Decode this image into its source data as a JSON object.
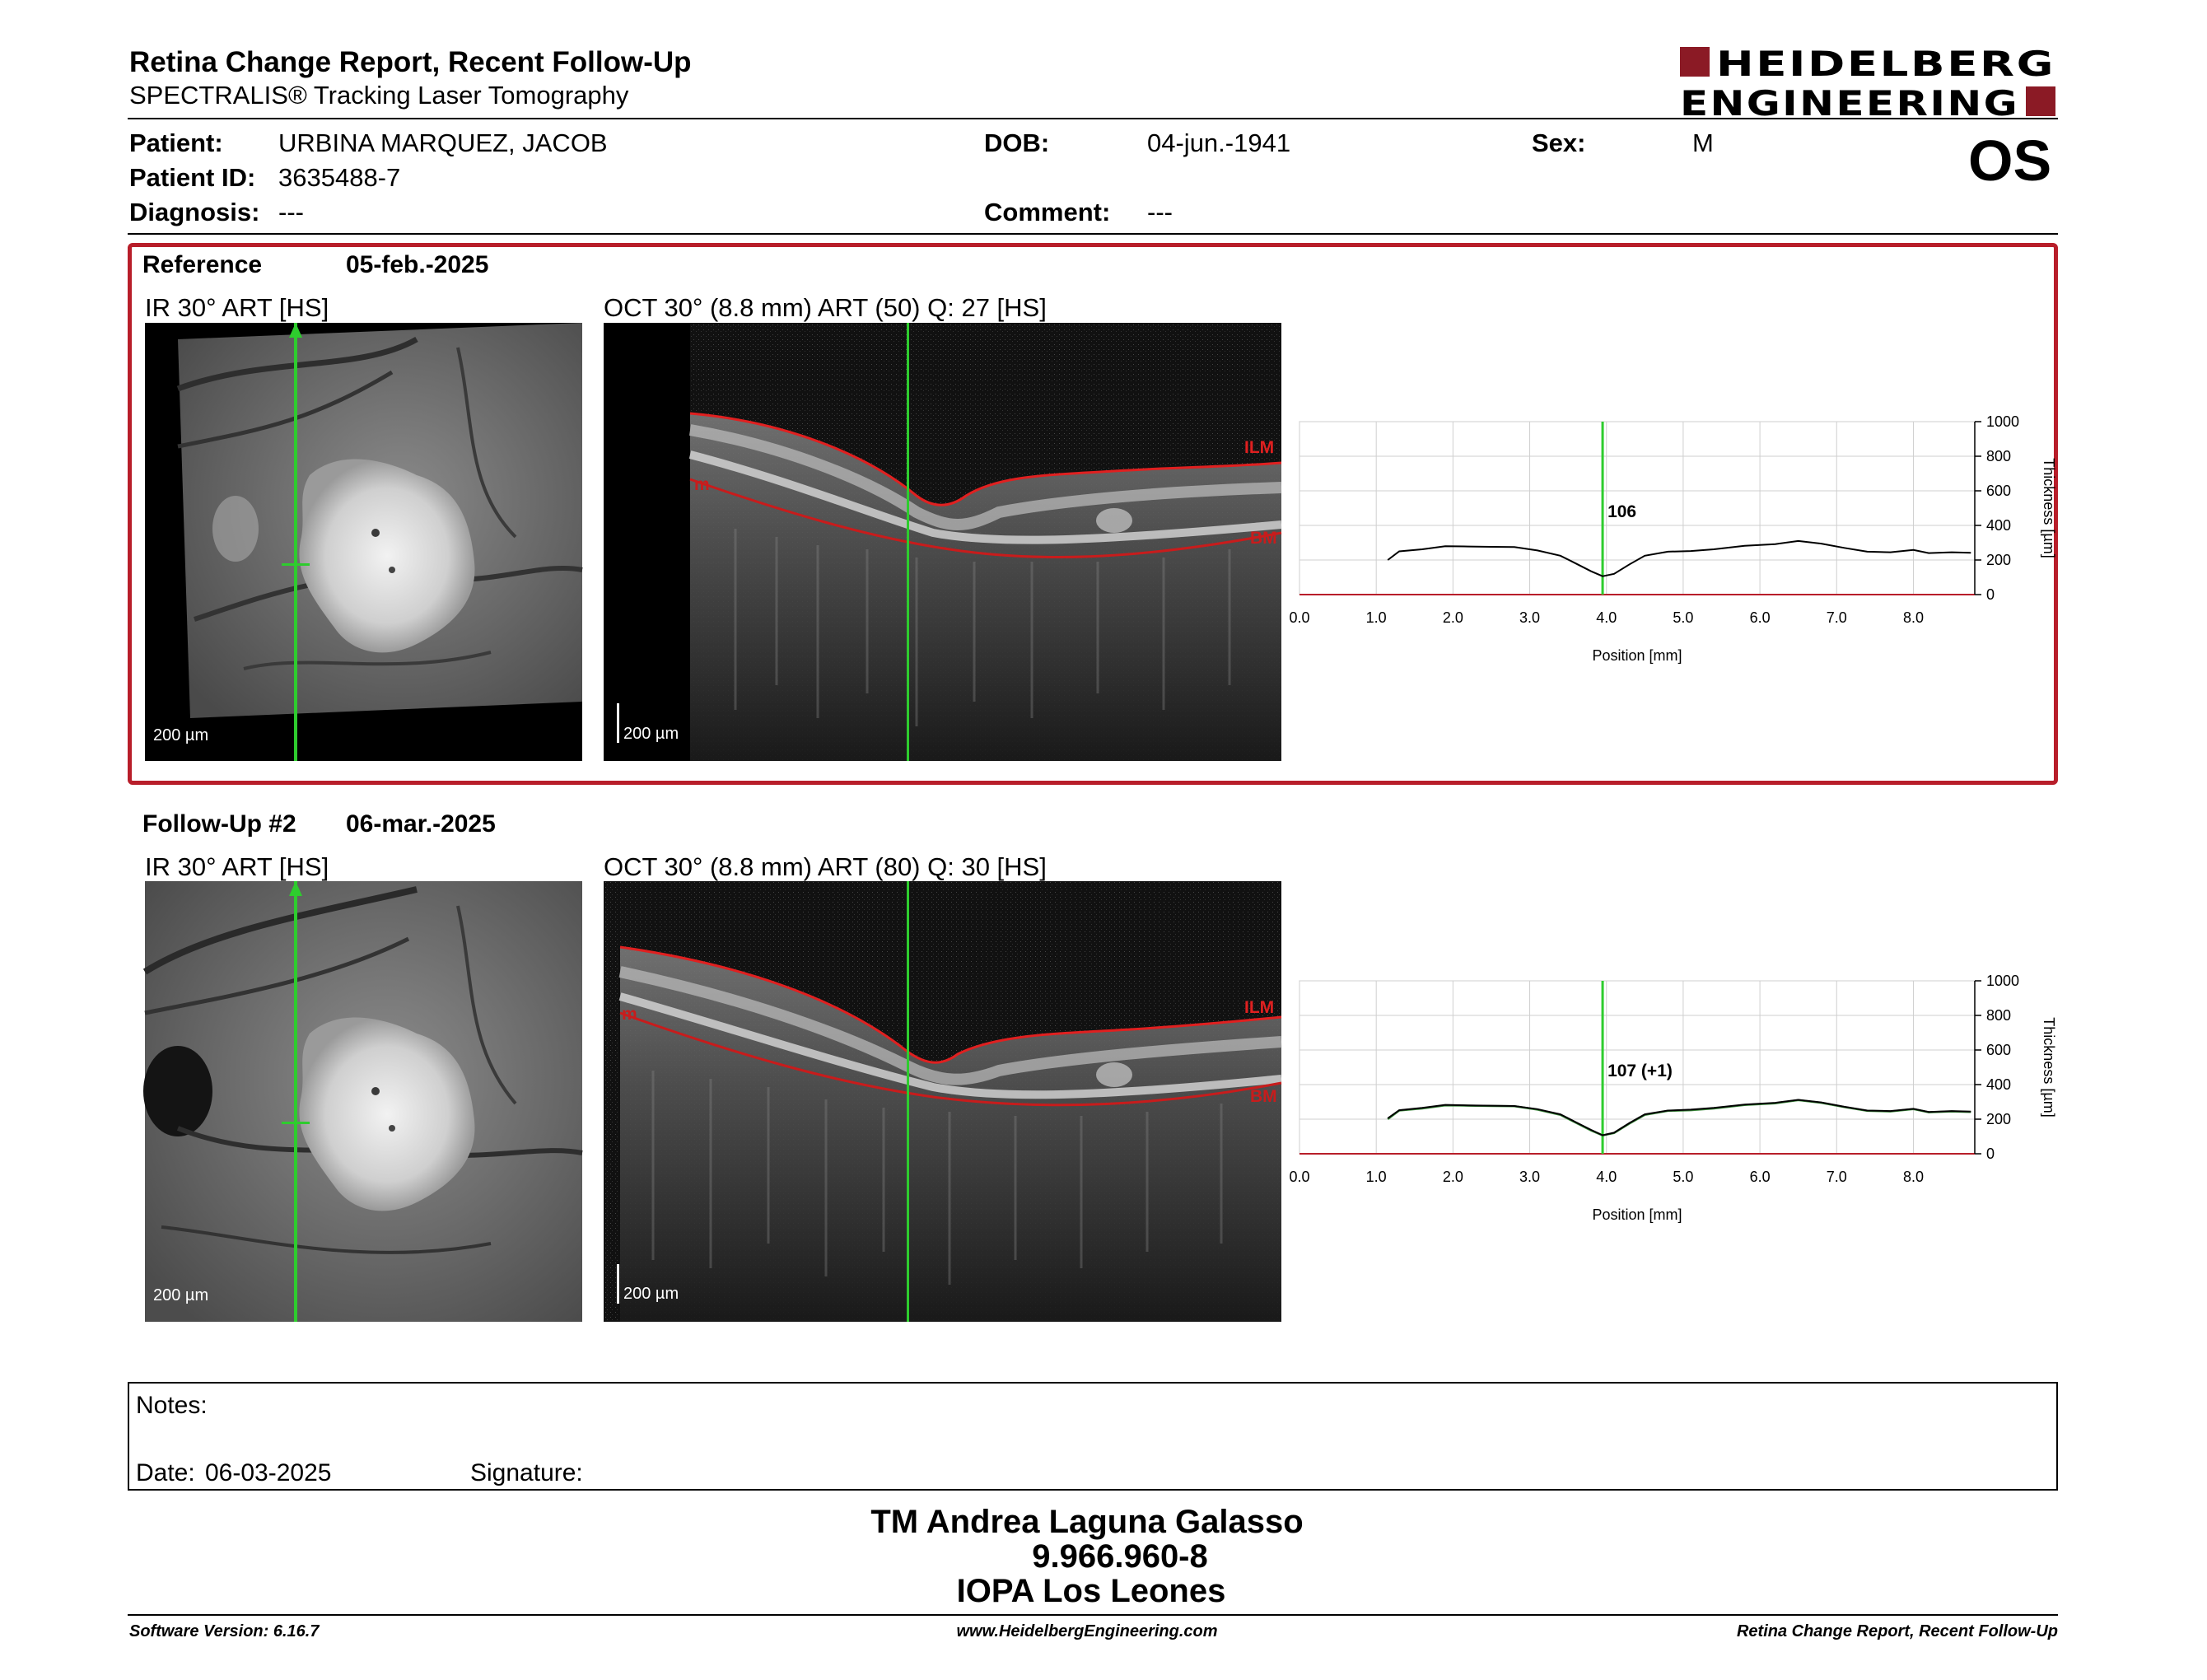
{
  "header": {
    "title": "Retina Change Report, Recent Follow-Up",
    "subtitle": "SPECTRALIS® Tracking Laser Tomography",
    "logo_line1": "HEIDELBERG",
    "logo_line2": "ENGINEERING",
    "brand_color": "#8b1a25"
  },
  "patient": {
    "patient_label": "Patient:",
    "patient_value": "URBINA MARQUEZ, JACOB",
    "id_label": "Patient ID:",
    "id_value": "3635488-7",
    "diagnosis_label": "Diagnosis:",
    "diagnosis_value": "---",
    "dob_label": "DOB:",
    "dob_value": "04-jun.-1941",
    "comment_label": "Comment:",
    "comment_value": "---",
    "sex_label": "Sex:",
    "sex_value": "M",
    "eye": "OS"
  },
  "reference": {
    "label": "Reference",
    "date": "05-feb.-2025",
    "ir_label": "IR 30° ART [HS]",
    "oct_label": "OCT 30° (8.8 mm) ART (50) Q: 27 [HS]",
    "scale_ir": "200 µm",
    "scale_oct": "200 µm",
    "ilm": "ILM",
    "bm": "BM",
    "m": "m",
    "highlight_color": "#b81e2a"
  },
  "followup": {
    "label": "Follow-Up #2",
    "date": "06-mar.-2025",
    "ir_label": "IR 30° ART [HS]",
    "oct_label": "OCT 30° (8.8 mm) ART (80) Q: 30 [HS]",
    "scale_ir": "200 µm",
    "scale_oct": "200 µm",
    "ilm": "ILM",
    "bm": "BM",
    "m": "m"
  },
  "chart_data": [
    {
      "type": "line",
      "xlabel": "Position [mm]",
      "ylabel": "Thickness [µm]",
      "xlim": [
        0,
        8.8
      ],
      "ylim": [
        0,
        1000
      ],
      "xticks": [
        "0.0",
        "1.0",
        "2.0",
        "3.0",
        "4.0",
        "5.0",
        "6.0",
        "7.0",
        "8.0"
      ],
      "yticks": [
        "0",
        "200",
        "400",
        "600",
        "800",
        "1000"
      ],
      "grid": true,
      "marker_x": 3.95,
      "marker_label": "106",
      "x": [
        1.15,
        1.3,
        1.6,
        1.9,
        2.2,
        2.5,
        2.8,
        3.1,
        3.4,
        3.6,
        3.8,
        3.95,
        4.1,
        4.3,
        4.5,
        4.8,
        5.1,
        5.4,
        5.8,
        6.2,
        6.5,
        6.8,
        7.1,
        7.4,
        7.7,
        8.0,
        8.2,
        8.5,
        8.75
      ],
      "series": [
        {
          "values": [
            200,
            250,
            262,
            280,
            278,
            276,
            275,
            255,
            225,
            180,
            135,
            106,
            120,
            175,
            225,
            248,
            252,
            262,
            282,
            292,
            310,
            295,
            270,
            248,
            245,
            258,
            240,
            245,
            242
          ]
        }
      ],
      "line_color": "#000000",
      "marker_color": "#2ecc2e"
    },
    {
      "type": "line",
      "xlabel": "Position [mm]",
      "ylabel": "Thickness [µm]",
      "xlim": [
        0,
        8.8
      ],
      "ylim": [
        0,
        1000
      ],
      "xticks": [
        "0.0",
        "1.0",
        "2.0",
        "3.0",
        "4.0",
        "5.0",
        "6.0",
        "7.0",
        "8.0"
      ],
      "yticks": [
        "0",
        "200",
        "400",
        "600",
        "800",
        "1000"
      ],
      "grid": true,
      "marker_x": 3.95,
      "marker_label": "107 (+1)",
      "x": [
        1.15,
        1.3,
        1.6,
        1.9,
        2.2,
        2.5,
        2.8,
        3.1,
        3.4,
        3.6,
        3.8,
        3.95,
        4.1,
        4.3,
        4.5,
        4.8,
        5.1,
        5.4,
        5.8,
        6.2,
        6.5,
        6.8,
        7.1,
        7.4,
        7.7,
        8.0,
        8.2,
        8.5,
        8.75
      ],
      "series": [
        {
          "values": [
            205,
            252,
            265,
            283,
            280,
            278,
            276,
            258,
            228,
            183,
            138,
            107,
            122,
            178,
            228,
            250,
            255,
            265,
            285,
            295,
            312,
            297,
            272,
            250,
            247,
            260,
            242,
            247,
            244
          ]
        },
        {
          "values": [
            200,
            250,
            262,
            280,
            278,
            276,
            275,
            255,
            225,
            180,
            135,
            106,
            120,
            175,
            225,
            248,
            252,
            262,
            282,
            292,
            310,
            295,
            270,
            248,
            245,
            258,
            240,
            245,
            242
          ]
        }
      ],
      "line_color": "#000000",
      "ref_color": "#3a8a3a",
      "marker_color": "#2ecc2e"
    }
  ],
  "notes": {
    "notes_label": "Notes:",
    "date_label": "Date:",
    "date_value": "06-03-2025",
    "signature_label": "Signature:"
  },
  "signatory": {
    "name": "TM Andrea Laguna Galasso",
    "id": "9.966.960-8",
    "institution": "IOPA Los Leones"
  },
  "footer": {
    "software": "Software Version: 6.16.7",
    "website": "www.HeidelbergEngineering.com",
    "report": "Retina Change Report, Recent Follow-Up"
  }
}
